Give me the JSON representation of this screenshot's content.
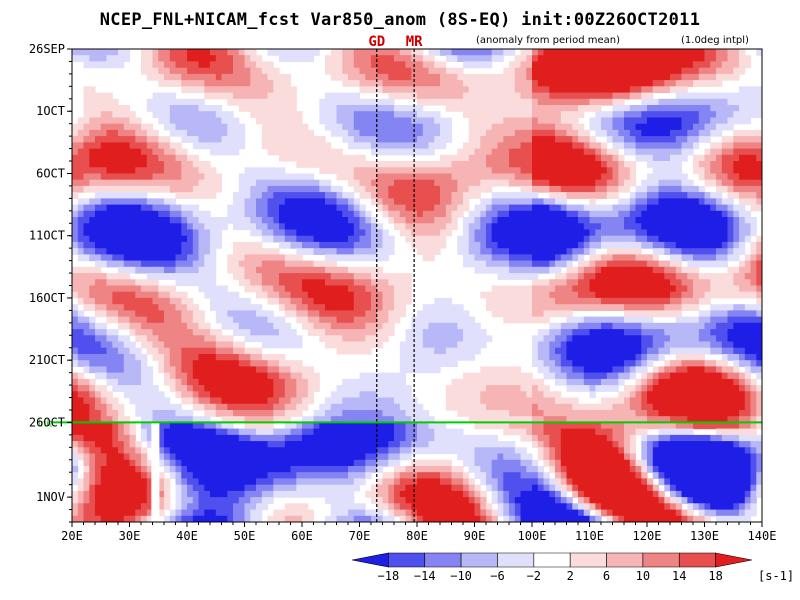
{
  "title": "NCEP_FNL+NICAM_fcst Var850_anom (8S-EQ) init:00Z26OCT2011",
  "notes": {
    "anomaly": "(anomaly from period mean)",
    "interp": "(1.0deg intpl)"
  },
  "colors": {
    "negative": [
      "#1e1ee6",
      "#5050ee",
      "#8484f2",
      "#b8b8f8",
      "#e0e0fc"
    ],
    "neutral": "#ffffff",
    "positive": [
      "#fbdcdc",
      "#f6b4b4",
      "#ef8484",
      "#e85050",
      "#e01e1e"
    ],
    "init_line": "#00cc00",
    "marker_text": "#cc0000"
  },
  "chart_data": {
    "type": "heatmap",
    "title": "NCEP_FNL+NICAM_fcst Var850_anom (8S-EQ) init:00Z26OCT2011",
    "x": {
      "range": [
        20,
        140
      ],
      "ticks": [
        20,
        30,
        40,
        50,
        60,
        70,
        80,
        90,
        100,
        110,
        120,
        130,
        140
      ],
      "tick_labels": [
        "20E",
        "30E",
        "40E",
        "50E",
        "60E",
        "70E",
        "80E",
        "90E",
        "100E",
        "110E",
        "120E",
        "130E",
        "140E"
      ]
    },
    "y": {
      "range": [
        "26SEP",
        "3NOV"
      ],
      "ticks": [
        "26SEP",
        "1OCT",
        "6OCT",
        "11OCT",
        "16OCT",
        "21OCT",
        "26OCT",
        "1NOV"
      ],
      "tick_day": [
        0,
        5,
        10,
        15,
        20,
        25,
        30,
        36
      ],
      "last_day": 38
    },
    "init_line": {
      "date": "26OCT",
      "day": 30,
      "label": "init"
    },
    "markers": [
      {
        "label": "GD",
        "lon": 73
      },
      {
        "label": "MR",
        "lon": 79.5
      }
    ],
    "colorbar": {
      "levels": [
        -18,
        -14,
        -10,
        -6,
        -2,
        2,
        6,
        10,
        14,
        18
      ],
      "unit": "[s-1]"
    }
  }
}
